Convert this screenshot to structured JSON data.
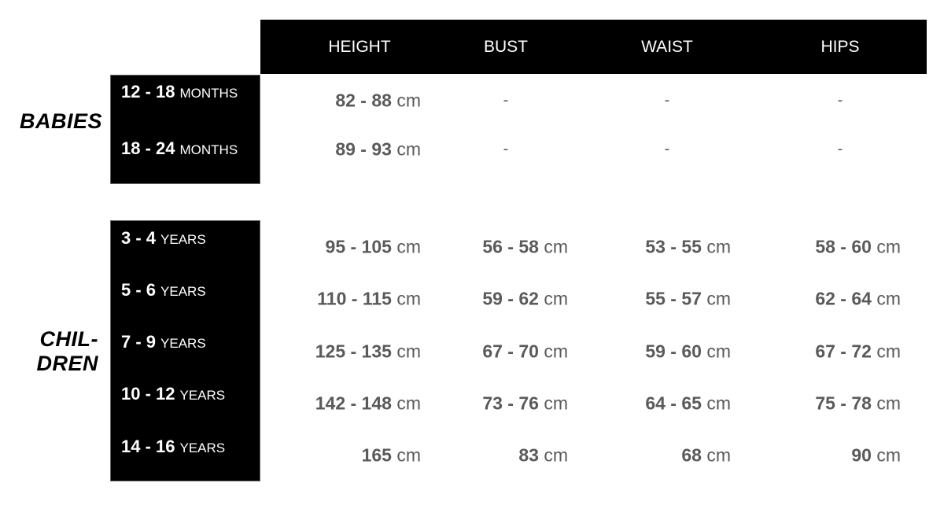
{
  "columns": [
    "HEIGHT",
    "BUST",
    "WAIST",
    "HIPS"
  ],
  "groups": [
    {
      "label": "BABIES",
      "rows": [
        {
          "range": "12 - 18",
          "unit": "MONTHS",
          "values": [
            "82 - 88",
            "-",
            "-",
            "-"
          ]
        },
        {
          "range": "18 - 24",
          "unit": "MONTHS",
          "values": [
            "89 - 93",
            "-",
            "-",
            "-"
          ]
        }
      ]
    },
    {
      "label_lines": [
        "CHIL-",
        "DREN"
      ],
      "rows": [
        {
          "range": "3 - 4",
          "unit": "YEARS",
          "values": [
            "95 - 105",
            "56 - 58",
            "53 - 55",
            "58 - 60"
          ]
        },
        {
          "range": "5 - 6",
          "unit": "YEARS",
          "values": [
            "110 - 115",
            "59 - 62",
            "55 - 57",
            "62 - 64"
          ]
        },
        {
          "range": "7 - 9",
          "unit": "YEARS",
          "values": [
            "125 - 135",
            "67 - 70",
            "59 - 60",
            "67 - 72"
          ]
        },
        {
          "range": "10 - 12",
          "unit": "YEARS",
          "values": [
            "142 - 148",
            "73 - 76",
            "64 - 65",
            "75 - 78"
          ]
        },
        {
          "range": "14 - 16",
          "unit": "YEARS",
          "values": [
            "165",
            "83",
            "68",
            "90"
          ]
        }
      ]
    }
  ],
  "value_unit": "cm"
}
